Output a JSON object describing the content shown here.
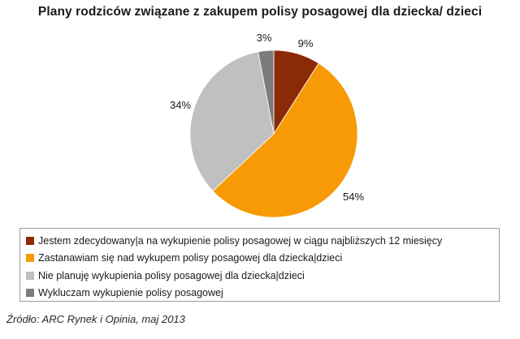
{
  "chart_data": {
    "type": "pie",
    "title": "Plany rodziców związane z zakupem polisy posagowej dla dziecka/ dzieci",
    "slices": [
      {
        "label": "Jestem zdecydowany|a na wykupienie polisy posagowej w ciągu najbliższych 12 miesięcy",
        "value": 9,
        "value_label": "9%",
        "color": "#8b2a06"
      },
      {
        "label": "Zastanawiam się nad wykupem polisy posagowej dla dziecka|dzieci",
        "value": 54,
        "value_label": "54%",
        "color": "#f79a05"
      },
      {
        "label": "Nie planuję wykupienia polisy posagowej dla dziecka|dzieci",
        "value": 34,
        "value_label": "34%",
        "color": "#c0c0c0"
      },
      {
        "label": "Wykluczam wykupienie polisy posagowej",
        "value": 3,
        "value_label": "3%",
        "color": "#7c7c7c"
      }
    ],
    "legend_position": "bottom"
  },
  "source": "Źródło: ARC Rynek i Opinia, maj 2013"
}
